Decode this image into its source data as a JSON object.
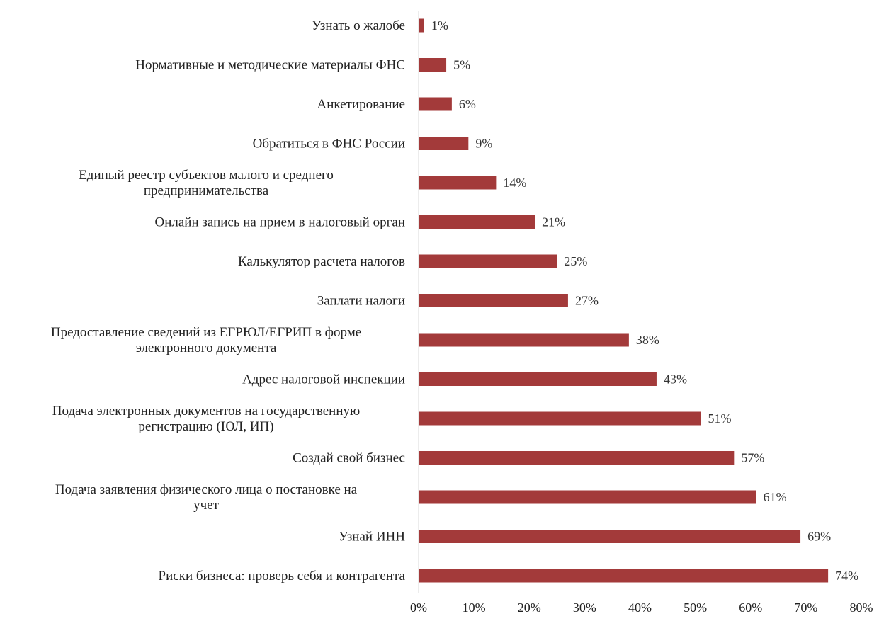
{
  "chart_data": {
    "type": "bar",
    "orientation": "horizontal",
    "title": "",
    "xlabel": "",
    "ylabel": "",
    "xlim": [
      0,
      80
    ],
    "x_ticks": [
      "0%",
      "10%",
      "20%",
      "30%",
      "40%",
      "50%",
      "60%",
      "70%",
      "80%"
    ],
    "grid": false,
    "bar_color": "#a33a3a",
    "categories": [
      [
        "Узнать о жалобе"
      ],
      [
        "Нормативные и методические материалы ФНС"
      ],
      [
        "Анкетирование"
      ],
      [
        "Обратиться в ФНС России"
      ],
      [
        "Единый реестр субъектов малого и среднего",
        "предпринимательства"
      ],
      [
        "Онлайн запись на прием в налоговый орган"
      ],
      [
        "Калькулятор расчета налогов"
      ],
      [
        "Заплати налоги"
      ],
      [
        "Предоставление сведений из ЕГРЮЛ/ЕГРИП в форме",
        "электронного документа"
      ],
      [
        "Адрес налоговой инспекции"
      ],
      [
        "Подача электронных документов на государственную",
        "регистрацию (ЮЛ, ИП)"
      ],
      [
        "Создай свой бизнес"
      ],
      [
        "Подача заявления физического лица о постановке на",
        "учет"
      ],
      [
        "Узнай ИНН"
      ],
      [
        "Риски бизнеса: проверь себя и контрагента"
      ]
    ],
    "values": [
      1,
      5,
      6,
      9,
      14,
      21,
      25,
      27,
      38,
      43,
      51,
      57,
      61,
      69,
      74
    ],
    "data_labels": [
      "1%",
      "5%",
      "6%",
      "9%",
      "14%",
      "21%",
      "25%",
      "27%",
      "38%",
      "43%",
      "51%",
      "57%",
      "61%",
      "69%",
      "74%"
    ]
  }
}
